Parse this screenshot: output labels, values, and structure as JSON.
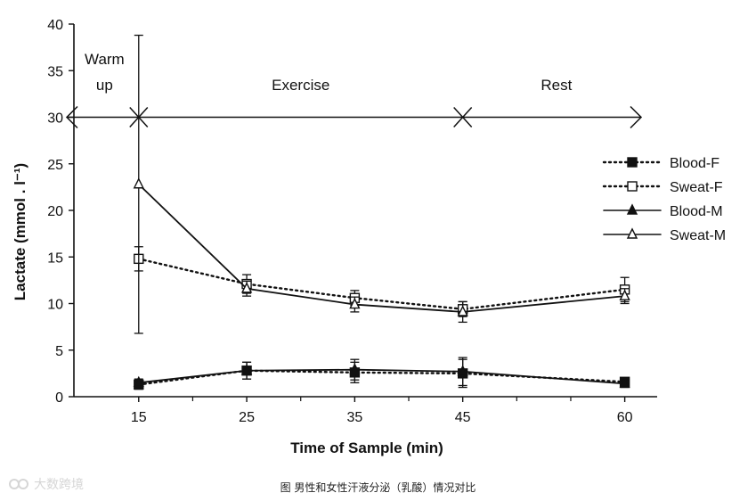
{
  "chart_data": {
    "type": "line",
    "title": "",
    "xlabel": "Time of Sample (min)",
    "ylabel": "Lactate (mmol . l⁻¹)",
    "x_ticks": [
      15,
      25,
      35,
      45,
      60
    ],
    "x_tick_labels": [
      "15",
      "25",
      "35",
      "45",
      "60"
    ],
    "y_ticks": [
      0,
      5,
      10,
      15,
      20,
      25,
      30,
      35,
      40
    ],
    "y_tick_labels": [
      "0",
      "5",
      "10",
      "15",
      "20",
      "25",
      "30",
      "35",
      "40"
    ],
    "ylim": [
      0,
      40
    ],
    "series": [
      {
        "name": "Blood-F",
        "marker": "filled-square",
        "line": "dotted",
        "values": [
          1.3,
          2.8,
          2.6,
          2.5,
          1.6
        ],
        "errors": [
          0.5,
          0.9,
          1.1,
          1.5,
          0.4
        ]
      },
      {
        "name": "Sweat-F",
        "marker": "open-square",
        "line": "dotted",
        "values": [
          14.8,
          12.1,
          10.6,
          9.4,
          11.5
        ],
        "errors": [
          1.3,
          1.0,
          0.8,
          0.8,
          1.3
        ]
      },
      {
        "name": "Blood-M",
        "marker": "filled-triangle",
        "line": "solid",
        "values": [
          1.5,
          2.8,
          2.9,
          2.7,
          1.4
        ],
        "errors": [
          0.4,
          0.9,
          1.1,
          1.5,
          0.4
        ]
      },
      {
        "name": "Sweat-M",
        "marker": "open-triangle",
        "line": "solid",
        "values": [
          22.8,
          11.6,
          9.9,
          9.1,
          10.8
        ],
        "errors": [
          16.0,
          0.8,
          0.8,
          1.1,
          0.8
        ]
      }
    ],
    "phases": [
      {
        "label_lines": [
          "Warm",
          "up"
        ],
        "x_start": 9,
        "x_end": 15
      },
      {
        "label_lines": [
          "Exercise"
        ],
        "x_start": 15,
        "x_end": 45
      },
      {
        "label_lines": [
          "Rest"
        ],
        "x_start": 45,
        "x_end": 63
      }
    ],
    "phase_arrow_level": 30,
    "legend_position": "right"
  },
  "caption": "图 男性和女性汗液分泌（乳酸）情况对比",
  "watermark": "大数跨境"
}
